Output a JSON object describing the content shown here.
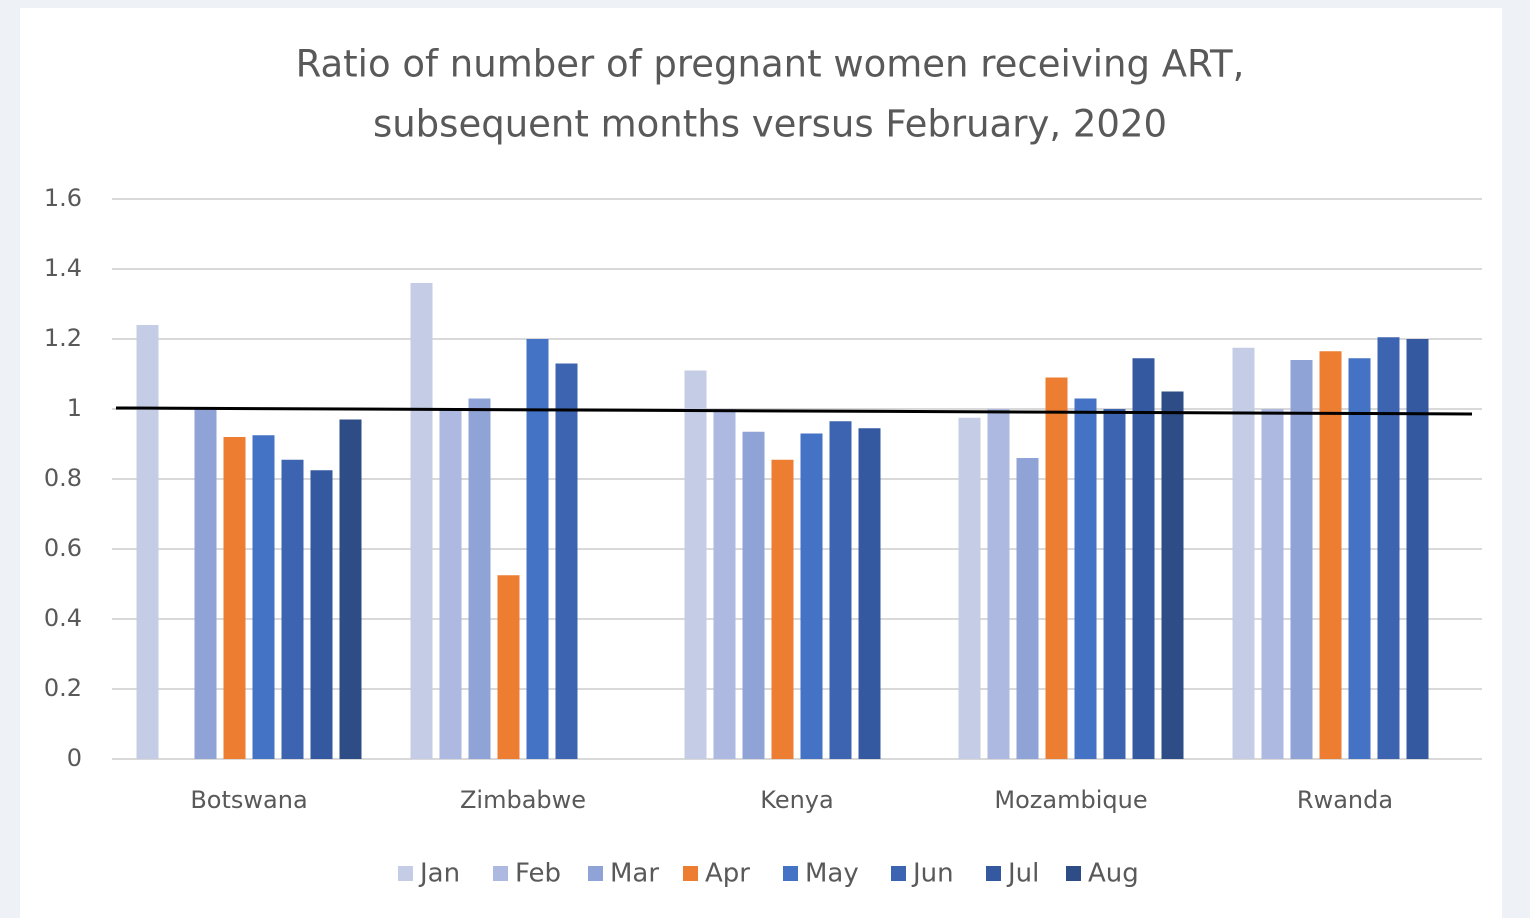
{
  "chart_data": {
    "type": "bar",
    "title": [
      "Ratio of number of pregnant women receiving ART,",
      "subsequent months versus February, 2020"
    ],
    "categories": [
      "Botswana",
      "Zimbabwe",
      "Kenya",
      "Mozambique",
      "Rwanda"
    ],
    "series": [
      {
        "name": "Jan",
        "color": "#c5cde6",
        "values": [
          1.24,
          1.36,
          1.11,
          0.975,
          1.175
        ]
      },
      {
        "name": "Feb",
        "color": "#adb9e0",
        "values": [
          null,
          1.0,
          1.0,
          1.0,
          1.0
        ]
      },
      {
        "name": "Mar",
        "color": "#8fa3d6",
        "values": [
          1.0,
          1.03,
          0.935,
          0.86,
          1.14
        ]
      },
      {
        "name": "Apr",
        "color": "#ed7d31",
        "values": [
          0.92,
          0.525,
          0.855,
          1.09,
          1.165
        ]
      },
      {
        "name": "May",
        "color": "#4472c4",
        "values": [
          0.925,
          1.2,
          0.93,
          1.03,
          1.145
        ]
      },
      {
        "name": "Jun",
        "color": "#3d64b0",
        "values": [
          0.855,
          1.13,
          0.965,
          1.0,
          1.205
        ]
      },
      {
        "name": "Jul",
        "color": "#3559a0",
        "values": [
          0.825,
          null,
          0.945,
          1.145,
          1.2
        ]
      },
      {
        "name": "Aug",
        "color": "#2e4c86",
        "values": [
          0.97,
          null,
          null,
          1.05,
          null
        ]
      }
    ],
    "ylim": [
      0,
      1.6
    ],
    "yticks": [
      0,
      0.2,
      0.4,
      0.6,
      0.8,
      1,
      1.2,
      1.4,
      1.6
    ],
    "grid": true,
    "legend": "bottom"
  }
}
